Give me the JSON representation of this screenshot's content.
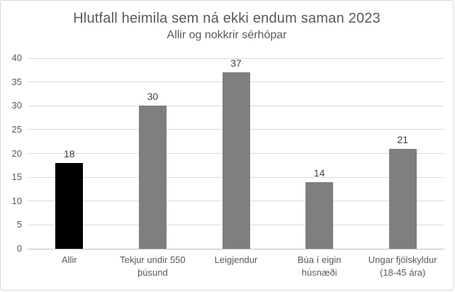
{
  "chart_data": {
    "type": "bar",
    "title": "Hlutfall heimila sem ná ekki endum saman 2023",
    "subtitle": "Allir og nokkrir sérhópar",
    "categories": [
      "Allir",
      "Tekjur undir 550 þúsund",
      "Leigjendur",
      "Búa í eigin húsnæði",
      "Ungar fjölskyldur (18-45 ára)"
    ],
    "values": [
      18,
      30,
      37,
      14,
      21
    ],
    "data_labels": [
      "18",
      "30",
      "37",
      "14",
      "21"
    ],
    "bar_colors": [
      "#000000",
      "#7f7f7f",
      "#7f7f7f",
      "#7f7f7f",
      "#7f7f7f"
    ],
    "xlabel": "",
    "ylabel": "",
    "ylim": [
      0,
      40
    ],
    "ytick_step": 5,
    "ytick_labels": [
      "0",
      "5",
      "10",
      "15",
      "20",
      "25",
      "30",
      "35",
      "40"
    ],
    "grid": true,
    "legend_position": "none",
    "colors": {
      "gridline": "#d9d9d9",
      "axis_line": "#bfbfbf",
      "text": "#595959",
      "data_label": "#404040",
      "bar_default": "#7f7f7f",
      "bar_highlight": "#000000",
      "background": "#ffffff",
      "border": "#d6d6d6"
    }
  }
}
